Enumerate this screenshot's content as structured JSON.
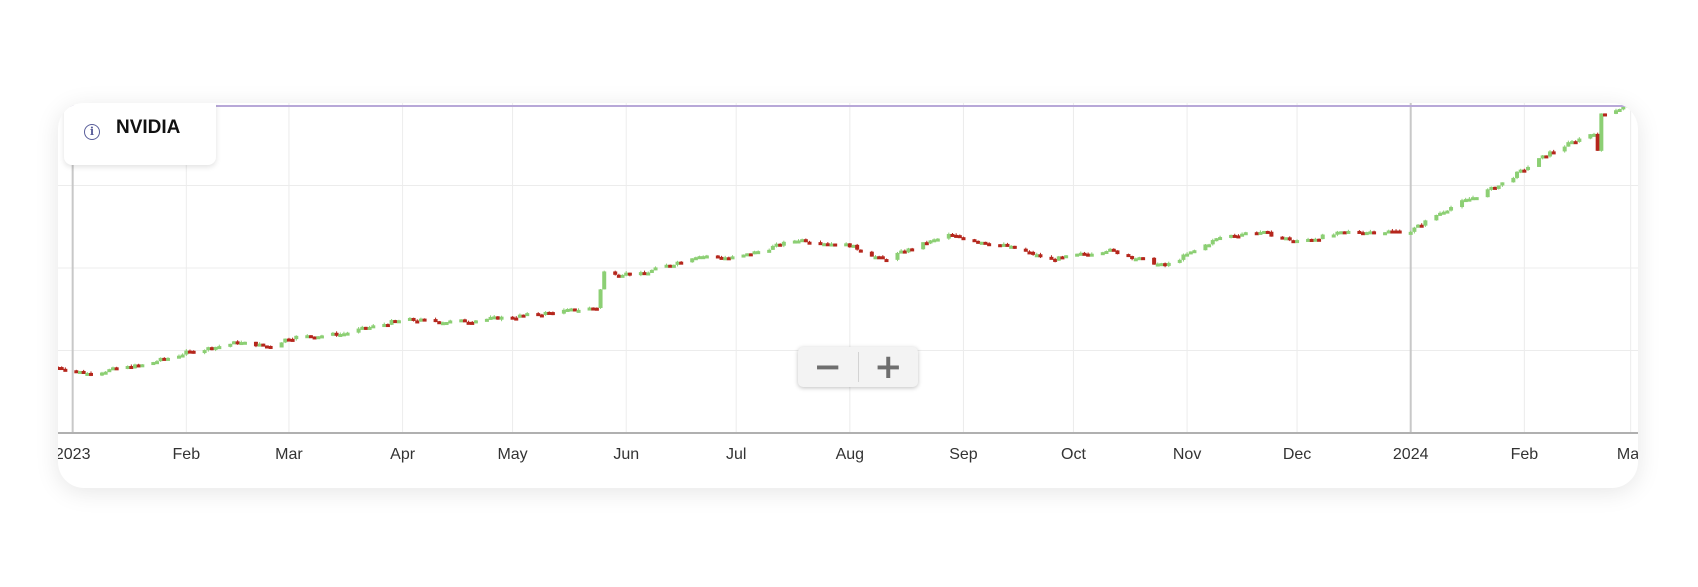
{
  "legend": {
    "title": "NVIDIA",
    "icon": "info-icon"
  },
  "zoom": {
    "minus_label": "−",
    "plus_label": "+"
  },
  "colors": {
    "up": "#8ccf74",
    "down": "#b5261c",
    "grid": "#ececec",
    "axis": "#b0b0b0",
    "tick_text": "#333333",
    "limit_line": "#b8a8d8"
  },
  "chart_data": {
    "type": "candlestick",
    "title": "NVIDIA",
    "x_ticks": [
      {
        "label": "2023",
        "date": "2023-01-01",
        "bold": true
      },
      {
        "label": "Feb",
        "date": "2023-02-01"
      },
      {
        "label": "Mar",
        "date": "2023-03-01"
      },
      {
        "label": "Apr",
        "date": "2023-04-01"
      },
      {
        "label": "May",
        "date": "2023-05-01"
      },
      {
        "label": "Jun",
        "date": "2023-06-01"
      },
      {
        "label": "Jul",
        "date": "2023-07-01"
      },
      {
        "label": "Aug",
        "date": "2023-08-01"
      },
      {
        "label": "Sep",
        "date": "2023-09-01"
      },
      {
        "label": "Oct",
        "date": "2023-10-01"
      },
      {
        "label": "Nov",
        "date": "2023-11-01"
      },
      {
        "label": "Dec",
        "date": "2023-12-01"
      },
      {
        "label": "2024",
        "date": "2024-01-01",
        "bold": true
      },
      {
        "label": "Feb",
        "date": "2024-02-01"
      },
      {
        "label": "Mar",
        "date": "2024-03-01"
      }
    ],
    "x_range": [
      "2022-12-28",
      "2024-03-03"
    ],
    "y_range": [
      0,
      800
    ],
    "y_gridlines": [
      200,
      400,
      600
    ],
    "grid": true,
    "price_path": [
      [
        "2022-12-28",
        160
      ],
      [
        "2023-01-05",
        145
      ],
      [
        "2023-01-20",
        165
      ],
      [
        "2023-02-01",
        195
      ],
      [
        "2023-02-15",
        220
      ],
      [
        "2023-02-24",
        210
      ],
      [
        "2023-03-01",
        232
      ],
      [
        "2023-03-15",
        240
      ],
      [
        "2023-04-01",
        275
      ],
      [
        "2023-04-15",
        270
      ],
      [
        "2023-05-01",
        282
      ],
      [
        "2023-05-24",
        305
      ],
      [
        "2023-05-26",
        390
      ],
      [
        "2023-06-05",
        385
      ],
      [
        "2023-06-20",
        430
      ],
      [
        "2023-07-01",
        425
      ],
      [
        "2023-07-18",
        470
      ],
      [
        "2023-08-01",
        455
      ],
      [
        "2023-08-10",
        420
      ],
      [
        "2023-08-20",
        455
      ],
      [
        "2023-08-28",
        480
      ],
      [
        "2023-09-12",
        455
      ],
      [
        "2023-09-25",
        420
      ],
      [
        "2023-10-10",
        445
      ],
      [
        "2023-10-26",
        405
      ],
      [
        "2023-11-10",
        475
      ],
      [
        "2023-11-20",
        490
      ],
      [
        "2023-12-01",
        465
      ],
      [
        "2023-12-15",
        488
      ],
      [
        "2024-01-01",
        490
      ],
      [
        "2024-01-10",
        540
      ],
      [
        "2024-01-25",
        600
      ],
      [
        "2024-02-08",
        680
      ],
      [
        "2024-02-20",
        730
      ],
      [
        "2024-02-21",
        680
      ],
      [
        "2024-02-22",
        775
      ],
      [
        "2024-02-28",
        790
      ],
      [
        "2024-03-02",
        805
      ]
    ]
  }
}
